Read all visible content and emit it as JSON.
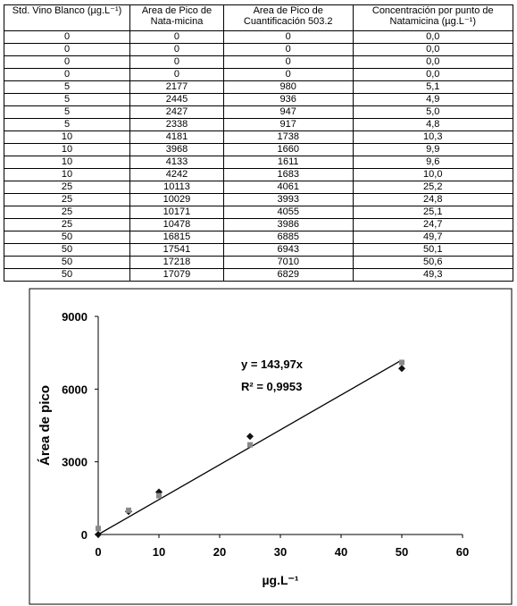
{
  "table": {
    "headers": [
      "Std. Vino Blanco (µg.L⁻¹)",
      "Area de Pico de Nata-micina",
      "Area de Pico de Cuantificación 503.2",
      "Concentración por punto de Natamicina (µg.L⁻¹)"
    ],
    "rows": [
      [
        "0",
        "0",
        "0",
        "0,0"
      ],
      [
        "0",
        "0",
        "0",
        "0,0"
      ],
      [
        "0",
        "0",
        "0",
        "0,0"
      ],
      [
        "0",
        "0",
        "0",
        "0,0"
      ],
      [
        "5",
        "2177",
        "980",
        "5,1"
      ],
      [
        "5",
        "2445",
        "936",
        "4,9"
      ],
      [
        "5",
        "2427",
        "947",
        "5,0"
      ],
      [
        "5",
        "2338",
        "917",
        "4,8"
      ],
      [
        "10",
        "4181",
        "1738",
        "10,3"
      ],
      [
        "10",
        "3968",
        "1660",
        "9,9"
      ],
      [
        "10",
        "4133",
        "1611",
        "9,6"
      ],
      [
        "10",
        "4242",
        "1683",
        "10,0"
      ],
      [
        "25",
        "10113",
        "4061",
        "25,2"
      ],
      [
        "25",
        "10029",
        "3993",
        "24,8"
      ],
      [
        "25",
        "10171",
        "4055",
        "25,1"
      ],
      [
        "25",
        "10478",
        "3986",
        "24,7"
      ],
      [
        "50",
        "16815",
        "6885",
        "49,7"
      ],
      [
        "50",
        "17541",
        "6943",
        "50,1"
      ],
      [
        "50",
        "17218",
        "7010",
        "50,6"
      ],
      [
        "50",
        "17079",
        "6829",
        "49,3"
      ]
    ]
  },
  "chart_data": {
    "type": "scatter",
    "y_label": "Área de pico",
    "x_label": "µg.L⁻¹",
    "annotations": [
      "y = 143,97x",
      "R² = 0,9953"
    ],
    "x": [
      0,
      5,
      10,
      25,
      50
    ],
    "series": [
      {
        "color": "#111111",
        "marker": "diamond",
        "values": [
          0,
          950,
          1750,
          4050,
          6850
        ]
      },
      {
        "color": "#8a8a8a",
        "marker": "square",
        "values": [
          250,
          1000,
          1600,
          3700,
          7100
        ]
      }
    ],
    "trendline": {
      "color": "#000000",
      "x": [
        0,
        50
      ],
      "values": [
        0,
        7198.5
      ]
    },
    "xlim": [
      0,
      60
    ],
    "xticks": [
      0,
      10,
      20,
      30,
      40,
      50,
      60
    ],
    "ylim": [
      0,
      9000
    ],
    "yticks": [
      0,
      3000,
      6000,
      9000
    ]
  }
}
